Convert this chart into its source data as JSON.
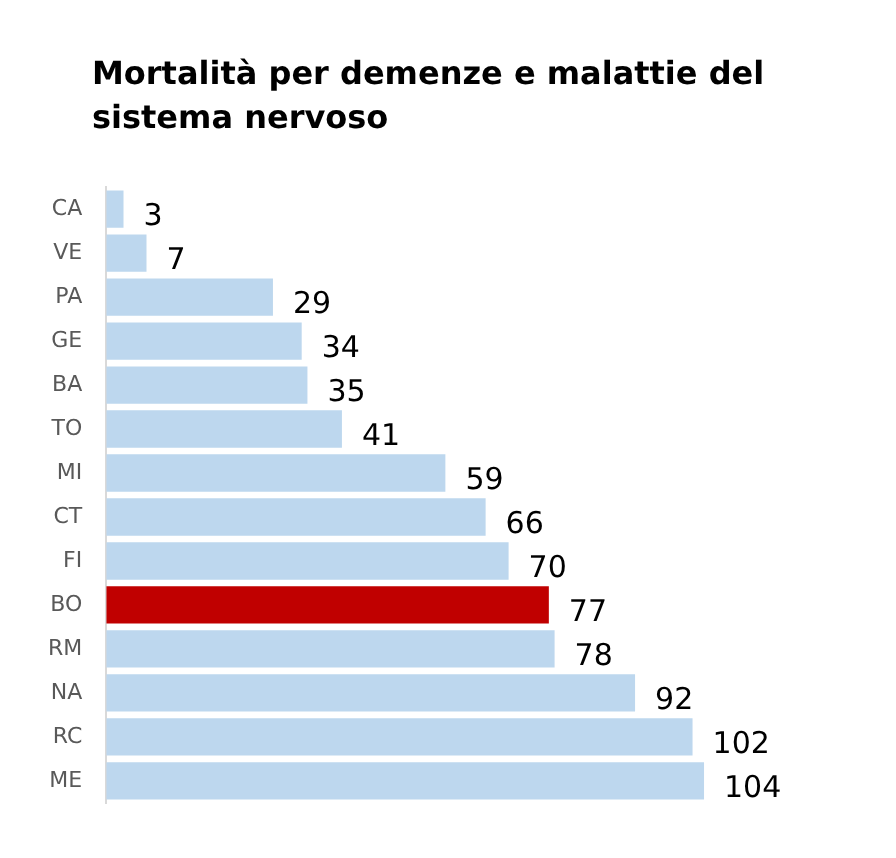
{
  "chart_data": {
    "type": "bar",
    "orientation": "horizontal",
    "title": "Mortalità per demenze e malattie del sistema nervoso",
    "categories": [
      "CA",
      "VE",
      "PA",
      "GE",
      "BA",
      "TO",
      "MI",
      "CT",
      "FI",
      "BO",
      "RM",
      "NA",
      "RC",
      "ME"
    ],
    "values": [
      3,
      7,
      29,
      34,
      35,
      41,
      59,
      66,
      70,
      77,
      78,
      92,
      102,
      104
    ],
    "colors": [
      "#bdd7ee",
      "#bdd7ee",
      "#bdd7ee",
      "#bdd7ee",
      "#bdd7ee",
      "#bdd7ee",
      "#bdd7ee",
      "#bdd7ee",
      "#bdd7ee",
      "#c00000",
      "#bdd7ee",
      "#bdd7ee",
      "#bdd7ee",
      "#bdd7ee"
    ],
    "data_labels": true
  }
}
